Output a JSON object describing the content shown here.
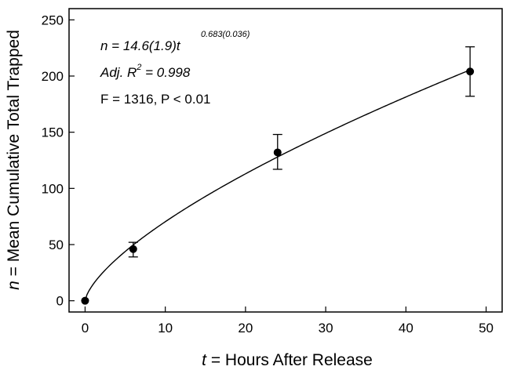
{
  "chart_data": {
    "type": "scatter",
    "xlabel_var": "t",
    "xlabel_rest": " = Hours After Release",
    "ylabel_var": "n",
    "ylabel_rest": " = Mean Cumulative Total Trapped",
    "xlim": [
      -2,
      52
    ],
    "ylim": [
      -10,
      260
    ],
    "xticks": [
      0,
      10,
      20,
      30,
      40,
      50
    ],
    "yticks": [
      0,
      50,
      100,
      150,
      200,
      250
    ],
    "x": [
      0,
      6,
      24,
      48
    ],
    "y": [
      0,
      46,
      132,
      204
    ],
    "yerr_low": [
      0,
      39,
      117,
      182
    ],
    "yerr_high": [
      0,
      52,
      148,
      226
    ],
    "fit": {
      "a": 14.6,
      "b": 0.683
    },
    "annotations": {
      "eq_main": "n = 14.6(1.9)t",
      "eq_exp": "0.683(0.036)",
      "r2_main": "Adj. R",
      "r2_sup": "2",
      "r2_val": " = 0.998",
      "stats": "F = 1316, P < 0.01"
    }
  }
}
